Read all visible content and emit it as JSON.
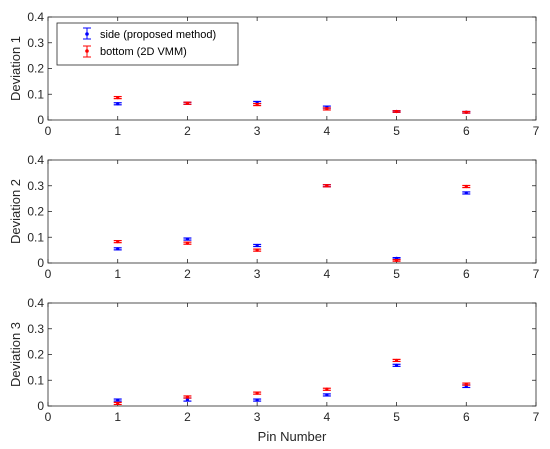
{
  "colors": {
    "side": "#0000ff",
    "bottom": "#ff0000",
    "axis": "#262626"
  },
  "xlabel": "Pin Number",
  "legend": {
    "side": "side (proposed method)",
    "bottom": "bottom (2D VMM)"
  },
  "chart_data": [
    {
      "type": "scatter",
      "ylabel": "Deviation 1",
      "xlim": [
        0,
        7
      ],
      "ylim": [
        0,
        0.4
      ],
      "xticks": [
        "0",
        "1",
        "2",
        "3",
        "4",
        "5",
        "6",
        "7"
      ],
      "yticks": [
        "0",
        "0.1",
        "0.2",
        "0.3",
        "0.4"
      ],
      "legend_position": "top-left",
      "grid": false,
      "series": [
        {
          "name": "side (proposed method)",
          "x": [
            1,
            2,
            3,
            4,
            5,
            6
          ],
          "y": [
            0.063,
            0.065,
            0.068,
            0.05,
            0.033,
            0.03
          ],
          "err": [
            0.004,
            0.004,
            0.004,
            0.004,
            0.003,
            0.003
          ]
        },
        {
          "name": "bottom (2D VMM)",
          "x": [
            1,
            2,
            3,
            4,
            5,
            6
          ],
          "y": [
            0.087,
            0.065,
            0.06,
            0.043,
            0.033,
            0.03
          ],
          "err": [
            0.004,
            0.004,
            0.004,
            0.004,
            0.003,
            0.003
          ]
        }
      ]
    },
    {
      "type": "scatter",
      "ylabel": "Deviation 2",
      "xlim": [
        0,
        7
      ],
      "ylim": [
        0,
        0.4
      ],
      "xticks": [
        "0",
        "1",
        "2",
        "3",
        "4",
        "5",
        "6",
        "7"
      ],
      "yticks": [
        "0",
        "0.1",
        "0.2",
        "0.3",
        "0.4"
      ],
      "grid": false,
      "series": [
        {
          "name": "side (proposed method)",
          "x": [
            1,
            2,
            3,
            4,
            5,
            6
          ],
          "y": [
            0.055,
            0.093,
            0.068,
            0.3,
            0.018,
            0.272
          ],
          "err": [
            0.004,
            0.004,
            0.004,
            0.004,
            0.003,
            0.004
          ]
        },
        {
          "name": "bottom (2D VMM)",
          "x": [
            1,
            2,
            3,
            4,
            5,
            6
          ],
          "y": [
            0.083,
            0.077,
            0.05,
            0.3,
            0.01,
            0.297
          ],
          "err": [
            0.004,
            0.004,
            0.004,
            0.004,
            0.003,
            0.004
          ]
        }
      ]
    },
    {
      "type": "scatter",
      "ylabel": "Deviation 3",
      "xlim": [
        0,
        7
      ],
      "ylim": [
        0,
        0.4
      ],
      "xticks": [
        "0",
        "1",
        "2",
        "3",
        "4",
        "5",
        "6",
        "7"
      ],
      "yticks": [
        "0",
        "0.1",
        "0.2",
        "0.3",
        "0.4"
      ],
      "grid": false,
      "series": [
        {
          "name": "side (proposed method)",
          "x": [
            1,
            2,
            3,
            4,
            5,
            6
          ],
          "y": [
            0.023,
            0.025,
            0.023,
            0.043,
            0.158,
            0.077
          ],
          "err": [
            0.004,
            0.006,
            0.004,
            0.004,
            0.004,
            0.005
          ]
        },
        {
          "name": "bottom (2D VMM)",
          "x": [
            1,
            2,
            3,
            4,
            5,
            6
          ],
          "y": [
            0.01,
            0.035,
            0.05,
            0.065,
            0.177,
            0.085
          ],
          "err": [
            0.004,
            0.004,
            0.004,
            0.004,
            0.004,
            0.004
          ]
        }
      ]
    }
  ]
}
